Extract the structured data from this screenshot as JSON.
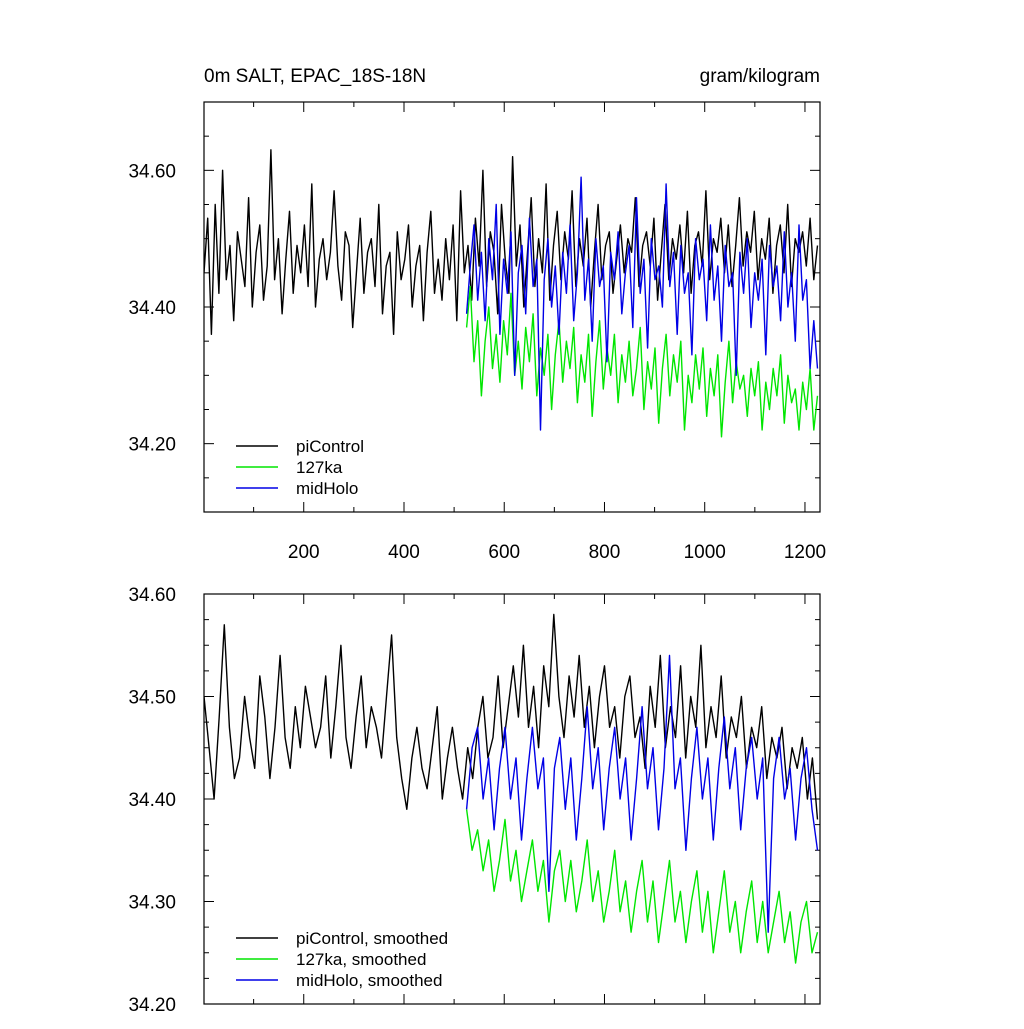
{
  "chart_data": [
    {
      "type": "line",
      "title_left": "0m SALT, EPAC_18S-18N",
      "title_right": "gram/kilogram",
      "xlim": [
        1,
        1230
      ],
      "ylim": [
        34.1,
        34.7
      ],
      "x_ticks": [
        200,
        400,
        600,
        800,
        1000,
        1200
      ],
      "x_tick_labels": [
        "200",
        "400",
        "600",
        "800",
        "1000",
        "1200"
      ],
      "y_ticks": [
        34.2,
        34.4,
        34.6
      ],
      "y_tick_labels": [
        "34.20",
        "34.40",
        "34.60"
      ],
      "legend_position": "bottom-left",
      "series": [
        {
          "name": "piControl",
          "color": "#000000",
          "x_start": 1,
          "x_end": 1225,
          "values": [
            34.45,
            34.53,
            34.36,
            34.55,
            34.42,
            34.6,
            34.44,
            34.49,
            34.38,
            34.51,
            34.47,
            34.43,
            34.56,
            34.4,
            34.48,
            34.52,
            34.41,
            34.46,
            34.63,
            34.44,
            34.5,
            34.39,
            34.47,
            34.54,
            34.42,
            34.49,
            34.45,
            34.52,
            34.43,
            34.58,
            34.4,
            34.47,
            34.5,
            34.44,
            34.48,
            34.57,
            34.46,
            34.41,
            34.51,
            34.49,
            34.37,
            34.45,
            34.53,
            34.42,
            34.48,
            34.5,
            34.43,
            34.55,
            34.39,
            34.46,
            34.48,
            34.36,
            34.51,
            34.44,
            34.47,
            34.52,
            34.4,
            34.46,
            34.49,
            34.38,
            34.48,
            34.54,
            34.42,
            34.47,
            34.41,
            34.5,
            34.44,
            34.52,
            34.38,
            34.57,
            34.45,
            34.49,
            34.41,
            34.53,
            34.46,
            34.6,
            34.43,
            34.51,
            34.48,
            34.39,
            34.55,
            34.47,
            34.42,
            34.62,
            34.46,
            34.52,
            34.4,
            34.48,
            34.56,
            34.43,
            34.5,
            34.45,
            34.58,
            34.41,
            34.49,
            34.54,
            34.44,
            34.51,
            34.47,
            34.57,
            34.43,
            34.5,
            34.46,
            34.53,
            34.4,
            34.48,
            34.55,
            34.44,
            34.49,
            34.51,
            34.42,
            34.47,
            34.52,
            34.45,
            34.5,
            34.48,
            34.56,
            34.43,
            34.49,
            34.51,
            34.46,
            34.53,
            34.41,
            34.48,
            34.55,
            34.44,
            34.5,
            34.47,
            34.52,
            34.45,
            34.54,
            34.42,
            34.49,
            34.51,
            34.46,
            34.57,
            34.44,
            34.5,
            34.48,
            34.53,
            34.45,
            34.52,
            34.43,
            34.49,
            34.56,
            34.46,
            34.51,
            34.48,
            34.54,
            34.44,
            34.5,
            34.47,
            34.53,
            34.42,
            34.49,
            34.52,
            34.45,
            34.55,
            34.43,
            34.5,
            34.48,
            34.51,
            34.46,
            34.53,
            34.44,
            34.49
          ],
          "note_values": ""
        },
        {
          "name": "127ka",
          "color": "#00e600",
          "x_start": 525,
          "x_end": 1225,
          "values": [
            34.37,
            34.43,
            34.32,
            34.38,
            34.27,
            34.35,
            34.4,
            34.31,
            34.36,
            34.29,
            34.38,
            34.33,
            34.42,
            34.3,
            34.35,
            34.28,
            34.37,
            34.32,
            34.39,
            34.27,
            34.34,
            34.3,
            34.36,
            34.25,
            34.33,
            34.38,
            34.29,
            34.35,
            34.31,
            34.37,
            34.26,
            34.33,
            34.29,
            34.36,
            34.24,
            34.32,
            34.38,
            34.28,
            34.34,
            34.3,
            34.36,
            34.26,
            34.33,
            34.29,
            34.35,
            34.27,
            34.31,
            34.37,
            34.25,
            34.32,
            34.28,
            34.34,
            34.23,
            34.31,
            34.36,
            34.27,
            34.33,
            34.29,
            34.35,
            34.22,
            34.3,
            34.26,
            34.33,
            34.28,
            34.34,
            34.24,
            34.31,
            34.27,
            34.33,
            34.21,
            34.29,
            34.35,
            34.26,
            34.32,
            34.28,
            34.3,
            34.24,
            34.31,
            34.27,
            34.32,
            34.22,
            34.29,
            34.25,
            34.31,
            34.27,
            34.33,
            34.23,
            34.3,
            34.26,
            34.28,
            34.22,
            34.29,
            34.25,
            34.31,
            34.22,
            34.27
          ],
          "note_values": ""
        },
        {
          "name": "midHolo",
          "color": "#0000e6",
          "x_start": 525,
          "x_end": 1225,
          "values": [
            34.39,
            34.46,
            34.52,
            34.41,
            34.48,
            34.38,
            34.5,
            34.44,
            34.55,
            34.36,
            34.47,
            34.42,
            34.51,
            34.3,
            34.45,
            34.49,
            34.39,
            34.53,
            34.43,
            34.47,
            34.22,
            34.44,
            34.5,
            34.4,
            34.46,
            34.36,
            34.48,
            34.42,
            34.52,
            34.38,
            34.45,
            34.59,
            34.41,
            34.47,
            34.35,
            34.5,
            34.43,
            34.46,
            34.32,
            34.48,
            34.44,
            34.51,
            34.39,
            34.45,
            34.49,
            34.37,
            34.56,
            34.42,
            34.47,
            34.34,
            34.5,
            34.44,
            34.46,
            34.4,
            34.58,
            34.43,
            34.48,
            34.36,
            34.49,
            34.42,
            34.45,
            34.33,
            34.5,
            34.44,
            34.47,
            34.38,
            34.52,
            34.41,
            34.46,
            34.35,
            34.49,
            34.43,
            34.45,
            34.3,
            34.48,
            34.42,
            34.5,
            34.37,
            34.45,
            34.41,
            34.47,
            34.33,
            34.49,
            34.43,
            34.46,
            34.38,
            34.51,
            34.4,
            34.45,
            34.35,
            34.52,
            34.41,
            34.44,
            34.31,
            34.38,
            34.31
          ],
          "note_values": ""
        }
      ]
    },
    {
      "type": "line",
      "title_left": "",
      "title_right": "",
      "xlim": [
        1,
        1230
      ],
      "ylim": [
        34.2,
        34.6
      ],
      "x_ticks": [
        200,
        400,
        600,
        800,
        1000,
        1200
      ],
      "x_tick_labels": [],
      "y_ticks": [
        34.2,
        34.3,
        34.4,
        34.5,
        34.6
      ],
      "y_tick_labels": [
        "34.20",
        "34.30",
        "34.40",
        "34.50",
        "34.60"
      ],
      "legend_position": "bottom-left",
      "series": [
        {
          "name": "piControl, smoothed",
          "color": "#000000",
          "x_start": 1,
          "x_end": 1225,
          "values": [
            34.5,
            34.45,
            34.4,
            34.48,
            34.57,
            34.47,
            34.42,
            34.44,
            34.5,
            34.46,
            34.43,
            34.52,
            34.48,
            34.42,
            34.47,
            34.54,
            34.46,
            34.43,
            34.49,
            34.45,
            34.51,
            34.48,
            34.45,
            34.47,
            34.52,
            34.44,
            34.49,
            34.55,
            34.46,
            34.43,
            34.48,
            34.52,
            34.45,
            34.49,
            34.47,
            34.44,
            34.5,
            34.56,
            34.46,
            34.42,
            34.39,
            34.44,
            34.47,
            34.43,
            34.41,
            34.45,
            34.49,
            34.4,
            34.44,
            34.47,
            34.43,
            34.4,
            34.45,
            34.42,
            34.47,
            34.5,
            34.44,
            34.46,
            34.52,
            34.45,
            34.49,
            34.53,
            34.48,
            34.55,
            34.47,
            34.51,
            34.45,
            34.53,
            34.49,
            34.58,
            34.5,
            34.46,
            34.52,
            34.48,
            34.54,
            34.47,
            34.51,
            34.45,
            34.5,
            34.53,
            34.47,
            34.49,
            34.44,
            34.5,
            34.52,
            34.46,
            34.48,
            34.43,
            34.51,
            34.47,
            34.54,
            34.45,
            34.49,
            34.46,
            34.53,
            34.44,
            34.5,
            34.47,
            34.55,
            34.45,
            34.49,
            34.46,
            34.52,
            34.44,
            34.48,
            34.46,
            34.5,
            34.43,
            34.47,
            34.45,
            34.49,
            34.42,
            34.46,
            34.44,
            34.47,
            34.41,
            34.45,
            34.43,
            34.46,
            34.4,
            34.44,
            34.38
          ],
          "note_values": ""
        },
        {
          "name": "127ka, smoothed",
          "color": "#00e600",
          "x_start": 525,
          "x_end": 1225,
          "values": [
            34.39,
            34.35,
            34.37,
            34.33,
            34.36,
            34.31,
            34.34,
            34.38,
            34.32,
            34.35,
            34.3,
            34.33,
            34.36,
            34.31,
            34.34,
            34.28,
            34.33,
            34.35,
            34.3,
            34.34,
            34.29,
            34.32,
            34.36,
            34.3,
            34.33,
            34.28,
            34.31,
            34.35,
            34.29,
            34.32,
            34.27,
            34.31,
            34.34,
            34.28,
            34.32,
            34.26,
            34.3,
            34.34,
            34.28,
            34.31,
            34.26,
            34.3,
            34.33,
            34.27,
            34.31,
            34.25,
            34.29,
            34.33,
            34.27,
            34.3,
            34.25,
            34.29,
            34.32,
            34.26,
            34.3,
            34.25,
            34.28,
            34.31,
            34.26,
            34.29,
            34.24,
            34.28,
            34.3,
            34.25,
            34.27
          ],
          "note_values": ""
        },
        {
          "name": "midHolo, smoothed",
          "color": "#0000e6",
          "x_start": 525,
          "x_end": 1225,
          "values": [
            34.39,
            34.45,
            34.47,
            34.4,
            34.44,
            34.37,
            34.43,
            34.47,
            34.4,
            34.44,
            34.36,
            34.42,
            34.47,
            34.41,
            34.44,
            34.31,
            34.43,
            34.46,
            34.39,
            34.44,
            34.36,
            34.42,
            34.49,
            34.41,
            34.45,
            34.37,
            34.43,
            34.47,
            34.4,
            34.44,
            34.36,
            34.42,
            34.49,
            34.41,
            34.45,
            34.37,
            34.43,
            34.54,
            34.41,
            34.44,
            34.35,
            34.42,
            34.47,
            34.4,
            34.44,
            34.36,
            34.43,
            34.48,
            34.41,
            34.45,
            34.37,
            34.43,
            34.46,
            34.4,
            34.44,
            34.27,
            34.42,
            34.46,
            34.4,
            34.43,
            34.36,
            34.42,
            34.45,
            34.39,
            34.35
          ],
          "note_values": ""
        }
      ]
    }
  ]
}
